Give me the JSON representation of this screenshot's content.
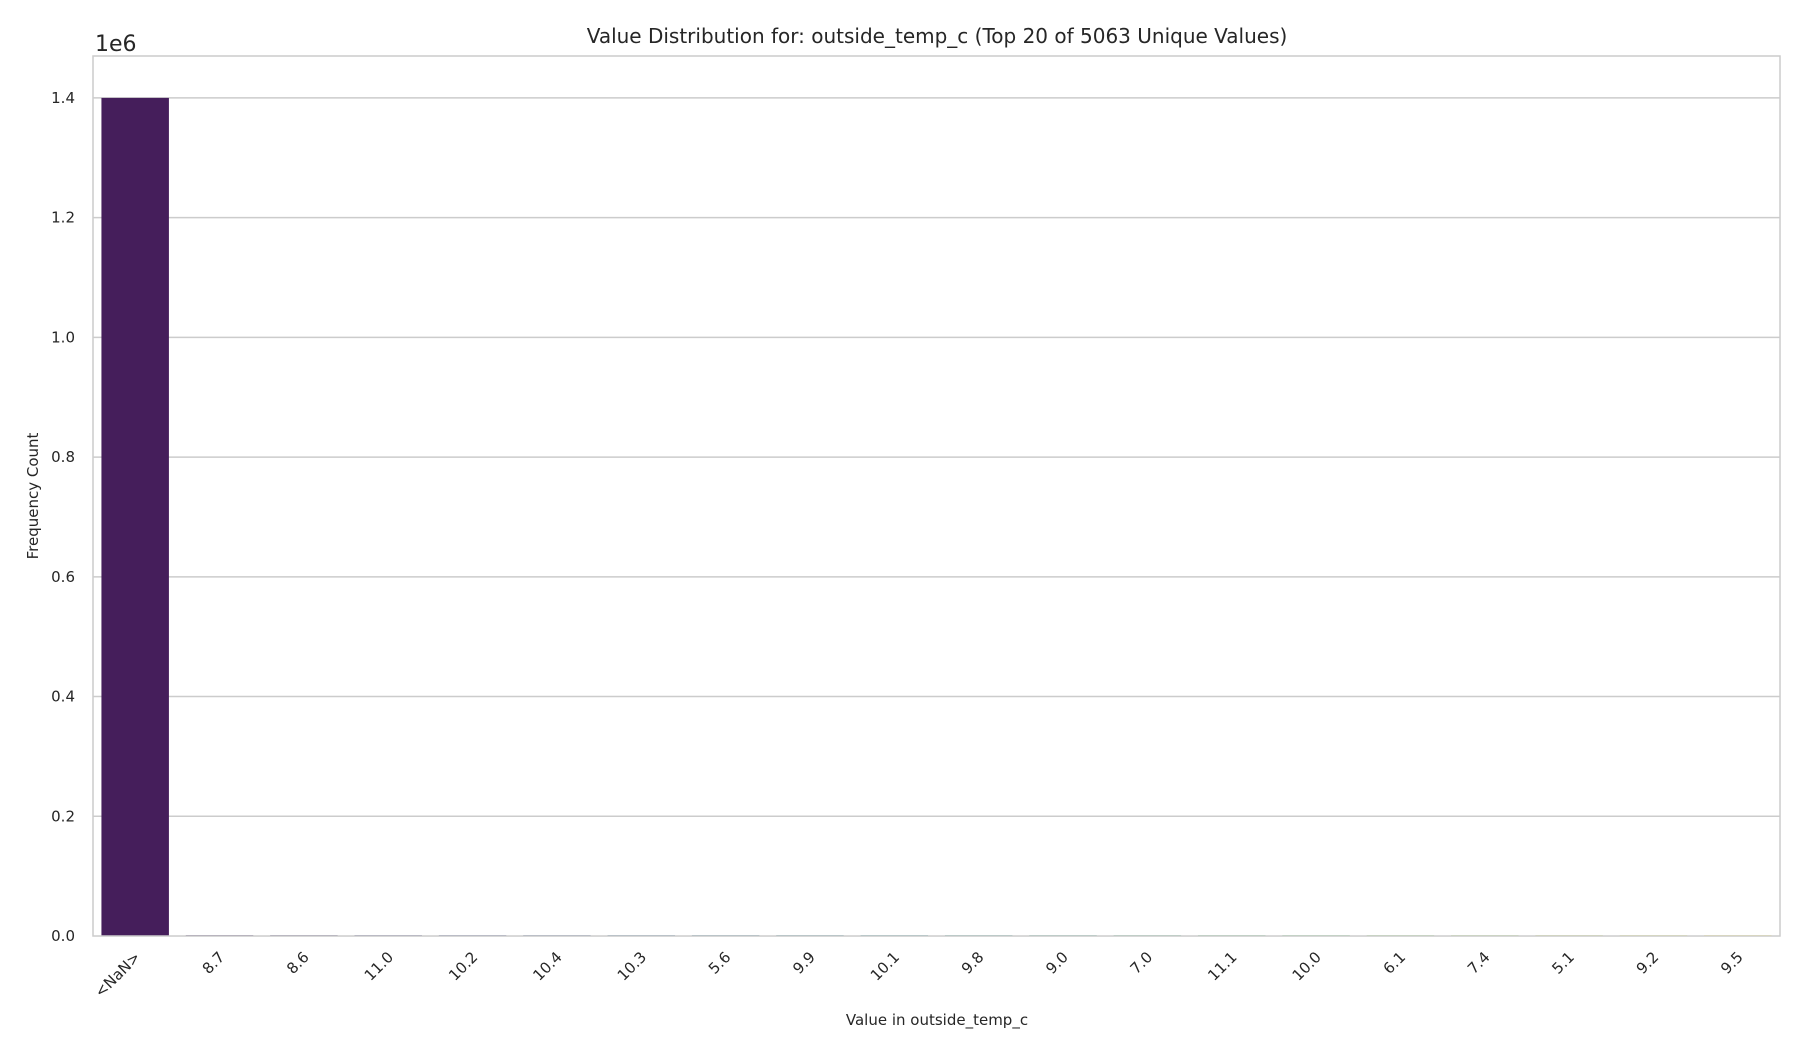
{
  "chart_data": {
    "type": "bar",
    "title": "Value Distribution for: outside_temp_c (Top 20 of 5063 Unique Values)",
    "xlabel": "Value in outside_temp_c",
    "ylabel": "Frequency Count",
    "y_offset_label": "1e6",
    "categories": [
      "<NaN>",
      "8.7",
      "8.6",
      "11.0",
      "10.2",
      "10.4",
      "10.3",
      "5.6",
      "9.9",
      "10.1",
      "9.8",
      "9.0",
      "7.0",
      "11.1",
      "10.0",
      "6.1",
      "7.4",
      "5.1",
      "9.2",
      "9.5"
    ],
    "values": [
      1400000,
      1400,
      1380,
      1360,
      1350,
      1340,
      1330,
      1320,
      1310,
      1300,
      1290,
      1280,
      1270,
      1260,
      1250,
      1240,
      1230,
      1220,
      1210,
      1200
    ],
    "ylim": [
      0,
      1470000
    ],
    "yticks": [
      0.0,
      0.2,
      0.4,
      0.6,
      0.8,
      1.0,
      1.2,
      1.4
    ],
    "ytick_labels": [
      "0.0",
      "0.2",
      "0.4",
      "0.6",
      "0.8",
      "1.0",
      "1.2",
      "1.4"
    ],
    "grid": "horizontal",
    "colors": {
      "first_bar": "#451e5b",
      "bar_gradient": [
        "#451e5b",
        "#3b528b",
        "#21918c",
        "#5ec962",
        "#fde725"
      ],
      "grid": "#cccccc",
      "frame": "#cccccc"
    }
  }
}
